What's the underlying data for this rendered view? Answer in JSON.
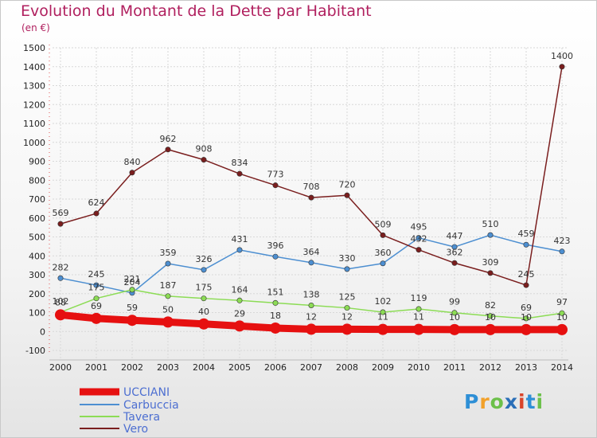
{
  "chart_data": {
    "type": "line",
    "title": "Evolution du Montant de la Dette par Habitant",
    "subtitle": "(en €)",
    "categories": [
      "2000",
      "2001",
      "2002",
      "2003",
      "2004",
      "2005",
      "2006",
      "2007",
      "2008",
      "2009",
      "2010",
      "2011",
      "2012",
      "2013",
      "2014"
    ],
    "ylim": [
      -100,
      1500
    ],
    "yticks": [
      -100,
      0,
      100,
      200,
      300,
      400,
      500,
      600,
      700,
      800,
      900,
      1000,
      1100,
      1200,
      1300,
      1400,
      1500
    ],
    "grid": true,
    "legend_position": "bottom-left",
    "series": [
      {
        "name": "UCCIANI",
        "color": "#e61010",
        "values": [
          88,
          69,
          59,
          50,
          40,
          29,
          18,
          12,
          12,
          11,
          11,
          10,
          10,
          10,
          10
        ]
      },
      {
        "name": "Carbuccia",
        "color": "#4d8fd1",
        "values": [
          282,
          245,
          204,
          359,
          326,
          431,
          396,
          364,
          330,
          360,
          495,
          447,
          510,
          459,
          423
        ]
      },
      {
        "name": "Tavera",
        "color": "#8cdc55",
        "values": [
          102,
          175,
          221,
          187,
          175,
          164,
          151,
          138,
          125,
          102,
          119,
          99,
          82,
          69,
          97
        ]
      },
      {
        "name": "Vero",
        "color": "#7a1e1e",
        "values": [
          569,
          624,
          840,
          962,
          908,
          834,
          773,
          708,
          720,
          509,
          432,
          362,
          309,
          245,
          1400
        ]
      }
    ]
  },
  "logo": {
    "letters": [
      "P",
      "r",
      "o",
      "x",
      "i",
      "t",
      "i"
    ]
  }
}
